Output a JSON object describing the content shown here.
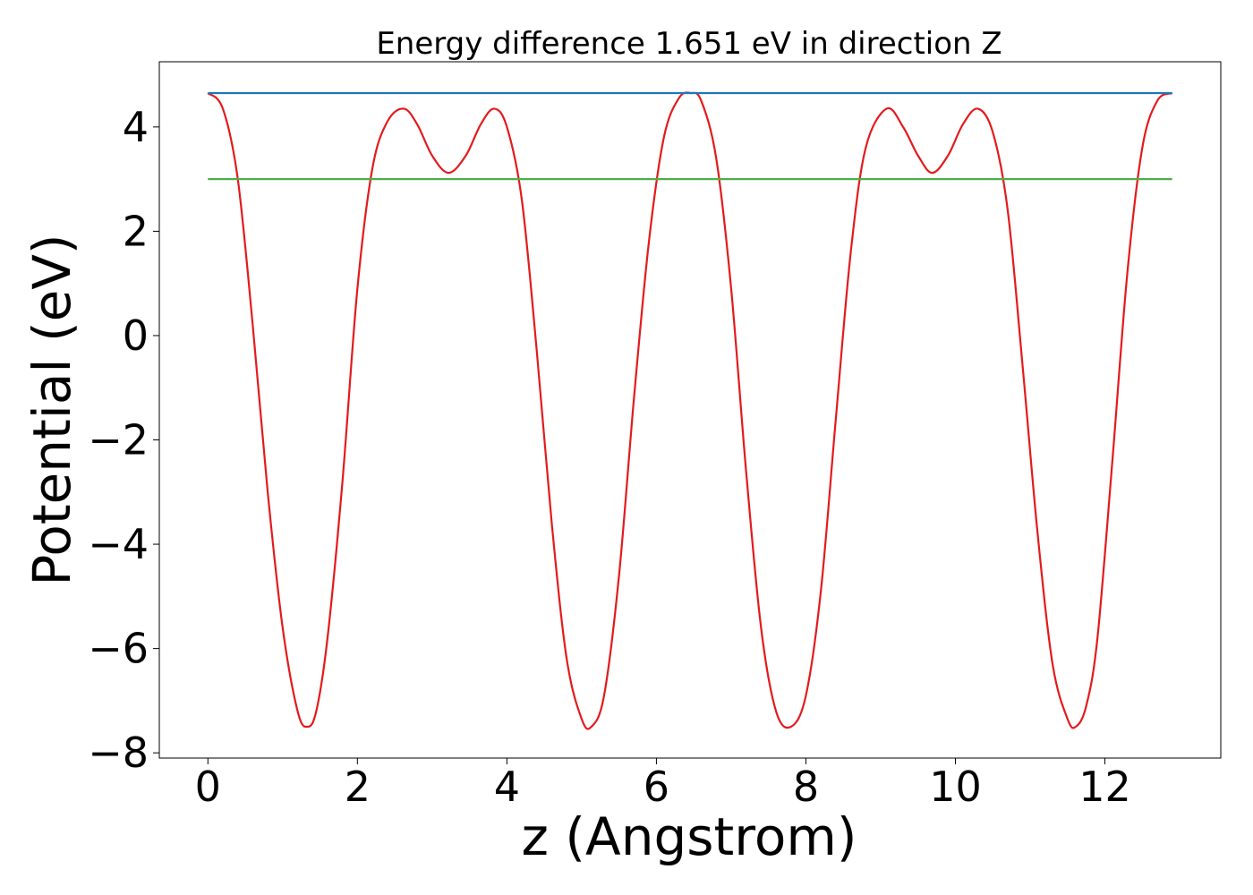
{
  "chart_data": {
    "type": "line",
    "title": "Energy difference 1.651 eV in direction Z",
    "xlabel": "z (Angstrom)",
    "ylabel": "Potential (eV)",
    "xlim": [
      -0.65,
      13.55
    ],
    "ylim": [
      -8.1,
      5.25
    ],
    "xticks": [
      0,
      2,
      4,
      6,
      8,
      10,
      12
    ],
    "yticks": [
      -8,
      -6,
      -4,
      -2,
      0,
      2,
      4
    ],
    "xtick_labels": [
      "0",
      "2",
      "4",
      "6",
      "8",
      "10",
      "12"
    ],
    "ytick_labels": [
      "−8",
      "−6",
      "−4",
      "−2",
      "0",
      "2",
      "4"
    ],
    "grid": false,
    "series": [
      {
        "color": "#e41a1c",
        "x": [
          0.0,
          0.2,
          0.4,
          0.6,
          0.8,
          1.0,
          1.2,
          1.33,
          1.45,
          1.6,
          1.8,
          2.0,
          2.2,
          2.4,
          2.62,
          2.8,
          3.0,
          3.22,
          3.45,
          3.65,
          3.83,
          4.0,
          4.2,
          4.4,
          4.6,
          4.8,
          5.0,
          5.13,
          5.3,
          5.5,
          5.7,
          5.9,
          6.1,
          6.3,
          6.46,
          6.6,
          6.8,
          7.0,
          7.2,
          7.4,
          7.6,
          7.8,
          8.0,
          8.2,
          8.4,
          8.6,
          8.8,
          9.08,
          9.3,
          9.5,
          9.69,
          9.9,
          10.1,
          10.3,
          10.5,
          10.7,
          10.9,
          11.1,
          11.3,
          11.5,
          11.61,
          11.75,
          11.9,
          12.1,
          12.3,
          12.5,
          12.7,
          12.9
        ],
        "y": [
          4.65,
          4.35,
          3.0,
          0.2,
          -3.0,
          -5.6,
          -7.2,
          -7.5,
          -7.2,
          -5.8,
          -2.8,
          0.9,
          3.2,
          4.1,
          4.35,
          4.05,
          3.45,
          3.12,
          3.45,
          4.05,
          4.35,
          4.0,
          2.6,
          -0.3,
          -3.6,
          -6.2,
          -7.35,
          -7.5,
          -6.9,
          -4.6,
          -1.2,
          1.8,
          3.8,
          4.55,
          4.65,
          4.5,
          3.4,
          0.9,
          -2.6,
          -5.6,
          -7.2,
          -7.5,
          -6.9,
          -4.9,
          -1.6,
          1.6,
          3.6,
          4.35,
          4.0,
          3.45,
          3.12,
          3.45,
          4.05,
          4.35,
          3.9,
          2.4,
          -0.6,
          -3.8,
          -6.3,
          -7.35,
          -7.5,
          -7.1,
          -5.8,
          -2.4,
          1.2,
          3.6,
          4.5,
          4.65
        ]
      },
      {
        "color": "#1f77b4",
        "x": [
          0.0,
          12.9
        ],
        "y": [
          4.65,
          4.65
        ]
      },
      {
        "color": "#4daf4a",
        "x": [
          0.0,
          12.9
        ],
        "y": [
          3.0,
          3.0
        ]
      }
    ]
  }
}
